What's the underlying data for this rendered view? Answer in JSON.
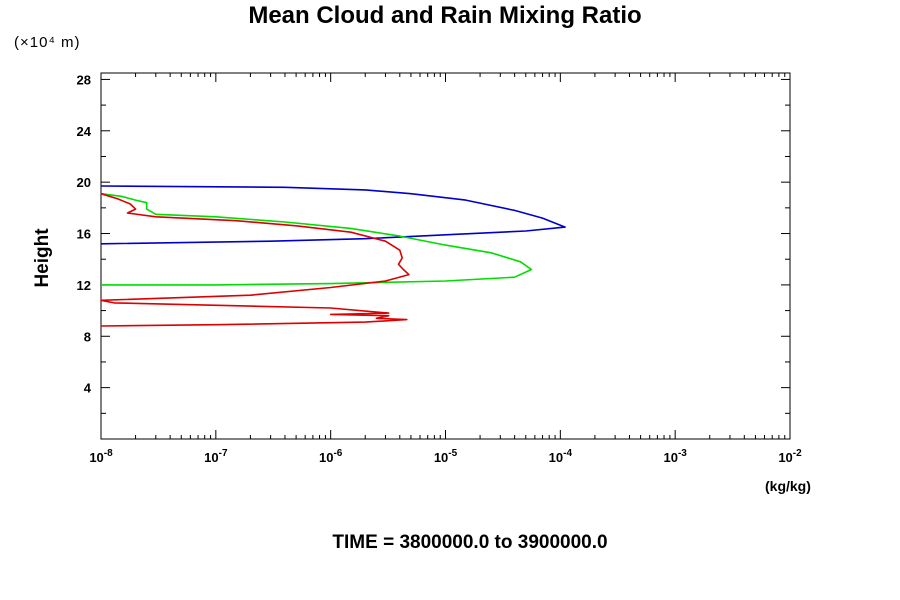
{
  "chart_data": {
    "type": "line",
    "title": "Mean Cloud and Rain Mixing Ratio",
    "ylabel": "Height",
    "yunit": "(×10⁴ m)",
    "xunit": "(kg/kg)",
    "subtitle": "TIME = 3800000.0 to 3900000.0",
    "xscale": "log",
    "xlim": [
      1e-08,
      0.01
    ],
    "ylim": [
      0,
      28.5
    ],
    "xticks": [
      {
        "base": "10",
        "exp": "-8"
      },
      {
        "base": "10",
        "exp": "-7"
      },
      {
        "base": "10",
        "exp": "-6"
      },
      {
        "base": "10",
        "exp": "-5"
      },
      {
        "base": "10",
        "exp": "-4"
      },
      {
        "base": "10",
        "exp": "-3"
      },
      {
        "base": "10",
        "exp": "-2"
      }
    ],
    "yticks": [
      "4",
      "8",
      "12",
      "16",
      "20",
      "24",
      "28"
    ],
    "grid": false,
    "series": [
      {
        "color": "#0000cc",
        "points": [
          [
            1e-08,
            19.7
          ],
          [
            4e-07,
            19.6
          ],
          [
            2e-06,
            19.4
          ],
          [
            5e-06,
            19.1
          ],
          [
            1.5e-05,
            18.6
          ],
          [
            4e-05,
            17.8
          ],
          [
            7e-05,
            17.2
          ],
          [
            0.00011,
            16.5
          ],
          [
            5e-05,
            16.2
          ],
          [
            1e-05,
            15.9
          ],
          [
            2e-06,
            15.6
          ],
          [
            3e-07,
            15.4
          ],
          [
            1e-08,
            15.2
          ]
        ]
      },
      {
        "color": "#00dd00",
        "points": [
          [
            1e-08,
            19.1
          ],
          [
            1.5e-08,
            18.9
          ],
          [
            2e-08,
            18.6
          ],
          [
            2.5e-08,
            18.4
          ],
          [
            2.5e-08,
            17.9
          ],
          [
            3e-08,
            17.5
          ],
          [
            1e-07,
            17.3
          ],
          [
            4e-07,
            16.9
          ],
          [
            1.5e-06,
            16.4
          ],
          [
            4e-06,
            15.8
          ],
          [
            1e-05,
            15.1
          ],
          [
            2.5e-05,
            14.5
          ],
          [
            4.5e-05,
            13.8
          ],
          [
            5.6e-05,
            13.2
          ],
          [
            4e-05,
            12.6
          ],
          [
            1e-05,
            12.3
          ],
          [
            1e-06,
            12.1
          ],
          [
            1e-07,
            12.0
          ],
          [
            1e-08,
            12.0
          ]
        ]
      },
      {
        "color": "#dd0000",
        "points": [
          [
            1e-08,
            19.1
          ],
          [
            1.4e-08,
            18.7
          ],
          [
            1.8e-08,
            18.3
          ],
          [
            2e-08,
            17.9
          ],
          [
            1.7e-08,
            17.6
          ],
          [
            3e-08,
            17.3
          ],
          [
            1.5e-07,
            17.0
          ],
          [
            5e-07,
            16.6
          ],
          [
            1.5e-06,
            16.1
          ],
          [
            3e-06,
            15.4
          ],
          [
            4e-06,
            14.7
          ],
          [
            4.2e-06,
            14.1
          ],
          [
            3.9e-06,
            13.6
          ],
          [
            4.3e-06,
            13.2
          ],
          [
            4.8e-06,
            12.8
          ],
          [
            3e-06,
            12.3
          ],
          [
            1e-06,
            11.8
          ],
          [
            2e-07,
            11.2
          ],
          [
            1e-08,
            10.8
          ],
          [
            1.3e-08,
            10.6
          ],
          [
            1e-06,
            10.2
          ],
          [
            3.2e-06,
            9.8
          ],
          [
            1e-06,
            9.7
          ],
          [
            3.2e-06,
            9.6
          ],
          [
            2.5e-06,
            9.4
          ],
          [
            4.6e-06,
            9.3
          ],
          [
            2e-06,
            9.1
          ],
          [
            1e-07,
            8.9
          ],
          [
            1e-08,
            8.8
          ]
        ]
      }
    ]
  }
}
